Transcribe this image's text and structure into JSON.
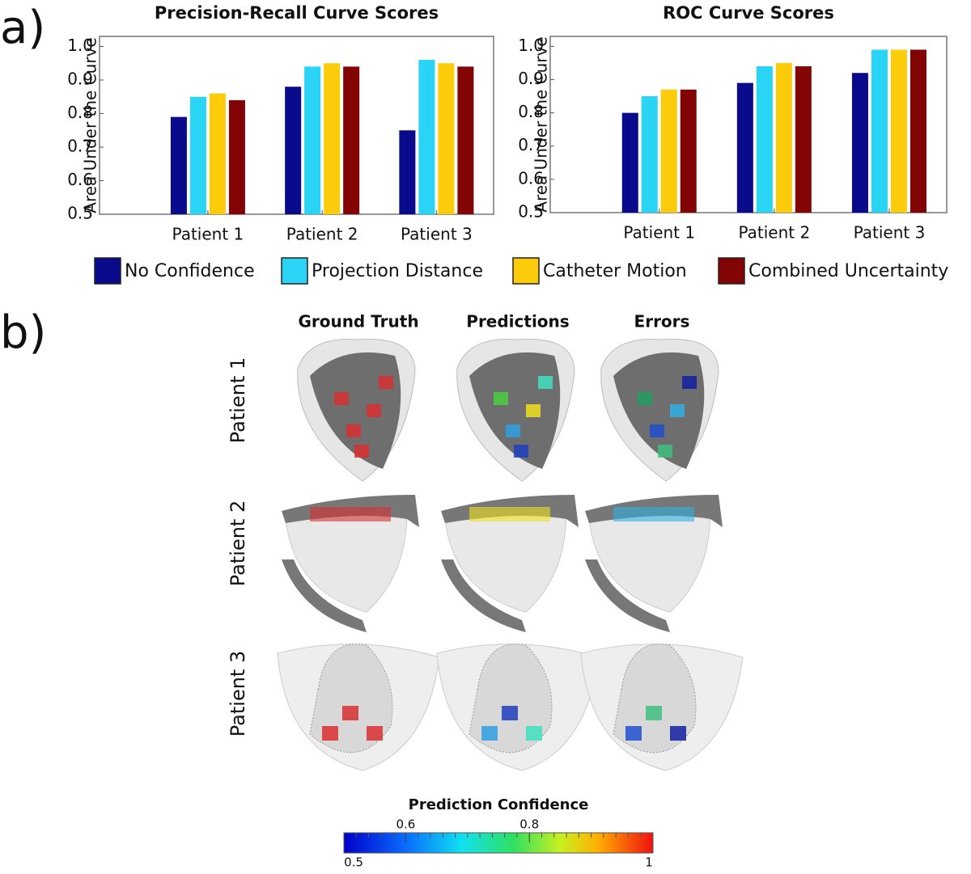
{
  "panel_labels": [
    "a)",
    "b)"
  ],
  "chart_data": [
    {
      "type": "bar",
      "title": "Precision-Recall  Curve Scores",
      "y_label": "Area Under the Curve",
      "categories": [
        "Patient 1",
        "Patient 2",
        "Patient 3"
      ],
      "series": [
        {
          "name": "No Confidence",
          "color": "#0a0a8c",
          "values": [
            0.79,
            0.88,
            0.75
          ]
        },
        {
          "name": "Projection Distance",
          "color": "#2ad4f4",
          "values": [
            0.85,
            0.94,
            0.96
          ]
        },
        {
          "name": "Catheter Motion",
          "color": "#fccc0a",
          "values": [
            0.86,
            0.95,
            0.95
          ]
        },
        {
          "name": "Combined  Uncertainty",
          "color": "#820404",
          "values": [
            0.84,
            0.94,
            0.94
          ]
        }
      ],
      "ylim": [
        0.5,
        1.03
      ],
      "yticks": [
        0.5,
        0.6,
        0.7,
        0.8,
        0.9,
        {
          "value": 1,
          "label": "1.0"
        }
      ]
    },
    {
      "type": "bar",
      "title": "ROC Curve Scores",
      "y_label": "Area Under the Curve",
      "categories": [
        "Patient 1",
        "Patient 2",
        "Patient 3"
      ],
      "series": [
        {
          "color": "#0a0a8c",
          "values": [
            0.8,
            0.89,
            0.92
          ]
        },
        {
          "color": "#2ad4f4",
          "values": [
            0.85,
            0.94,
            0.99
          ]
        },
        {
          "color": "#fccc0a",
          "values": [
            0.87,
            0.95,
            0.99
          ]
        },
        {
          "color": "#820404",
          "values": [
            0.87,
            0.94,
            0.99
          ]
        }
      ],
      "ylim": [
        0.5,
        1.03
      ],
      "yticks": [
        0.5,
        0.6,
        0.7,
        0.8,
        0.9,
        {
          "value": 1,
          "label": "1.0"
        }
      ]
    }
  ],
  "figure_b": {
    "columns": [
      "Ground Truth",
      "Predictions",
      "Errors"
    ],
    "rows": [
      "Patient 1",
      "Patient 2",
      "Patient 3"
    ]
  },
  "colorbar": {
    "title": "Prediction Confidence",
    "range": [
      0.5,
      1
    ],
    "ticks": [
      0.6,
      0.8
    ]
  }
}
